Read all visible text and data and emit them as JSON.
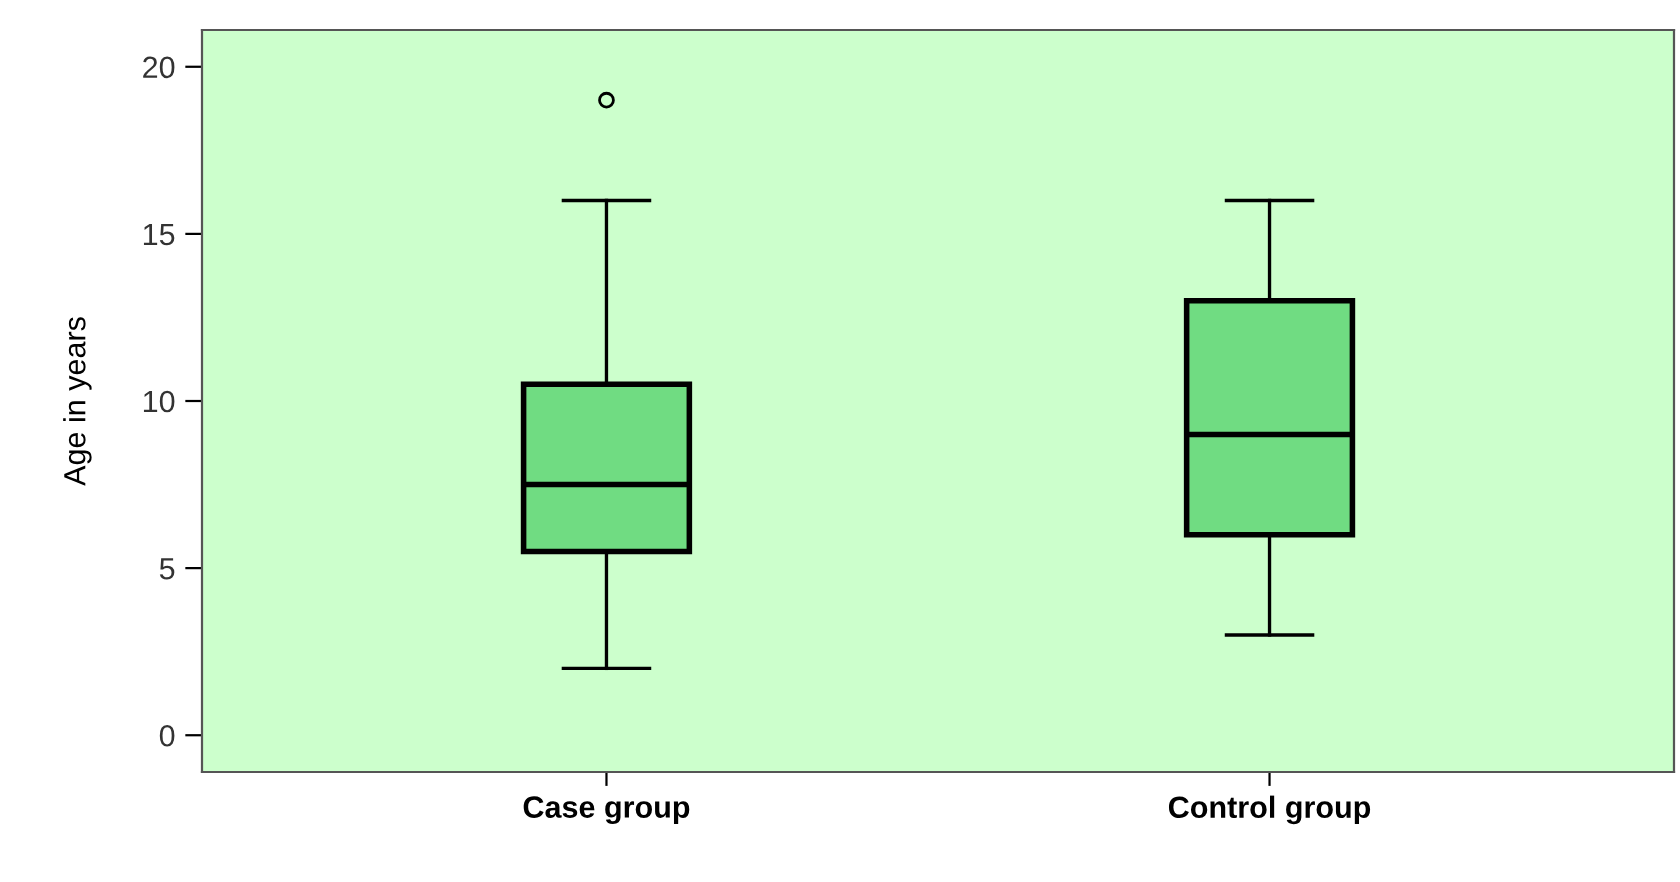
{
  "chart_data": {
    "type": "box",
    "ylabel": "Age in years",
    "categories": [
      "Case group",
      "Control group"
    ],
    "boxes": [
      {
        "low": 2,
        "q1": 5.5,
        "median": 7.5,
        "q3": 10.5,
        "high": 16,
        "outliers": [
          19
        ]
      },
      {
        "low": 3,
        "q1": 6,
        "median": 9,
        "q3": 13,
        "high": 16
      }
    ],
    "color": "#70dc82",
    "ylim": [
      -1.1,
      21.1
    ],
    "yticks": [
      0,
      5,
      10,
      15,
      20
    ],
    "grid": false
  }
}
